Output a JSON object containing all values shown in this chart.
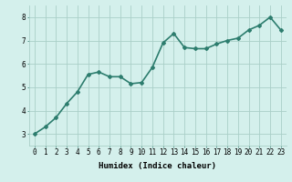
{
  "x": [
    0,
    1,
    2,
    3,
    4,
    5,
    6,
    7,
    8,
    9,
    10,
    11,
    12,
    13,
    14,
    15,
    16,
    17,
    18,
    19,
    20,
    21,
    22,
    23
  ],
  "y": [
    3.0,
    3.3,
    3.7,
    4.3,
    4.8,
    5.55,
    5.65,
    5.45,
    5.45,
    5.15,
    5.2,
    5.85,
    6.9,
    7.3,
    6.7,
    6.65,
    6.65,
    6.85,
    7.0,
    7.1,
    7.45,
    7.65,
    8.0,
    7.45
  ],
  "line_color": "#2d7d6e",
  "marker": "D",
  "marker_size": 2.0,
  "bg_color": "#d4f0ec",
  "grid_color": "#aacfc8",
  "xlabel": "Humidex (Indice chaleur)",
  "xlim": [
    -0.5,
    23.5
  ],
  "ylim": [
    2.5,
    8.5
  ],
  "yticks": [
    3,
    4,
    5,
    6,
    7,
    8
  ],
  "xticks": [
    0,
    1,
    2,
    3,
    4,
    5,
    6,
    7,
    8,
    9,
    10,
    11,
    12,
    13,
    14,
    15,
    16,
    17,
    18,
    19,
    20,
    21,
    22,
    23
  ],
  "xlabel_fontsize": 6.5,
  "tick_fontsize": 5.5,
  "line_width": 1.2
}
